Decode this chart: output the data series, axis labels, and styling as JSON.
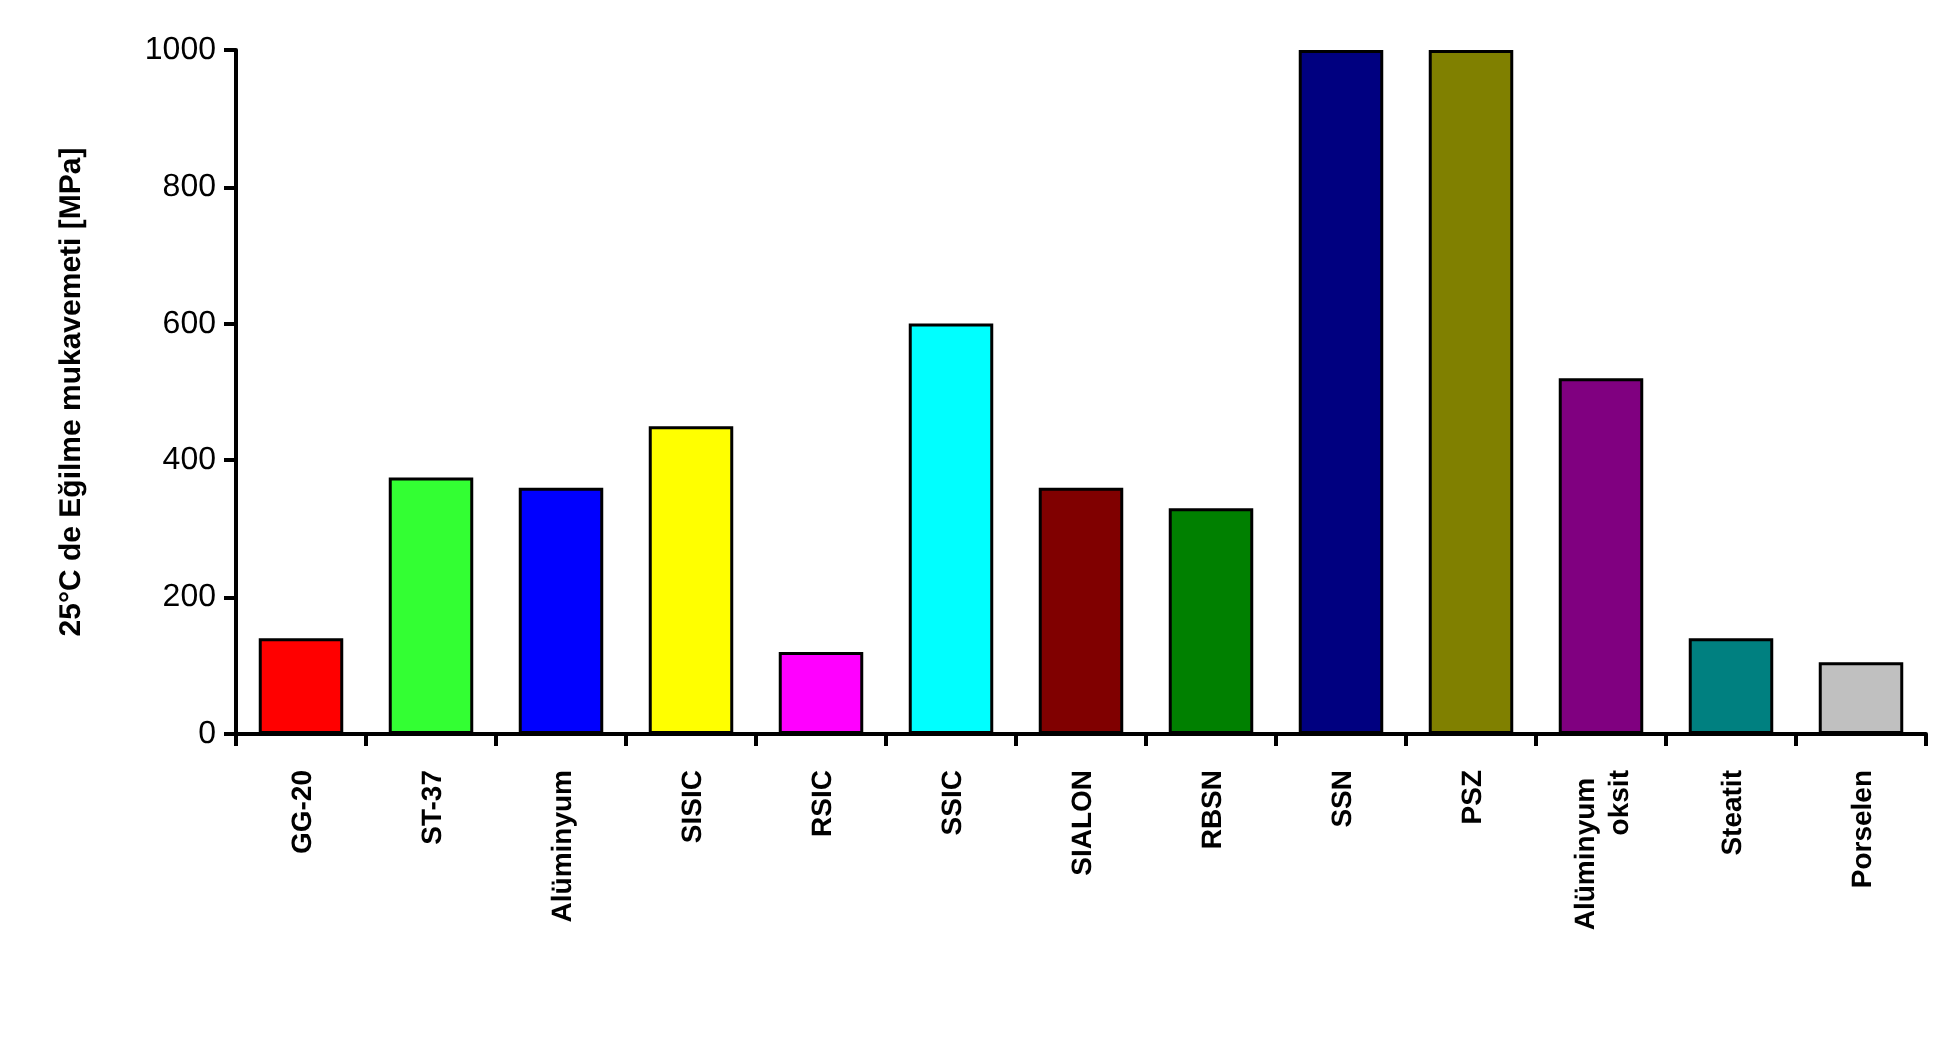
{
  "chart_data": {
    "type": "bar",
    "ylabel": "25°C de Eğilme mukavemeti [MPa]",
    "categories": [
      "GG-20",
      "ST-37",
      "Alüminyum",
      "SISIC",
      "RSIC",
      "SSIC",
      "SIALON",
      "RBSN",
      "SSN",
      "PSZ",
      "Alüminyum oksit",
      "Steatit",
      "Porselen"
    ],
    "values": [
      140,
      375,
      360,
      450,
      120,
      600,
      360,
      330,
      1000,
      1000,
      520,
      140,
      105
    ],
    "colors": [
      "#ff0000",
      "#33ff33",
      "#0000ff",
      "#ffff00",
      "#ff00ff",
      "#00ffff",
      "#800000",
      "#008000",
      "#000080",
      "#808000",
      "#800080",
      "#008080",
      "#c0c0c0"
    ],
    "ylim": [
      0,
      1000
    ],
    "yticks": [
      0,
      200,
      400,
      600,
      800,
      1000
    ],
    "grid": false
  }
}
